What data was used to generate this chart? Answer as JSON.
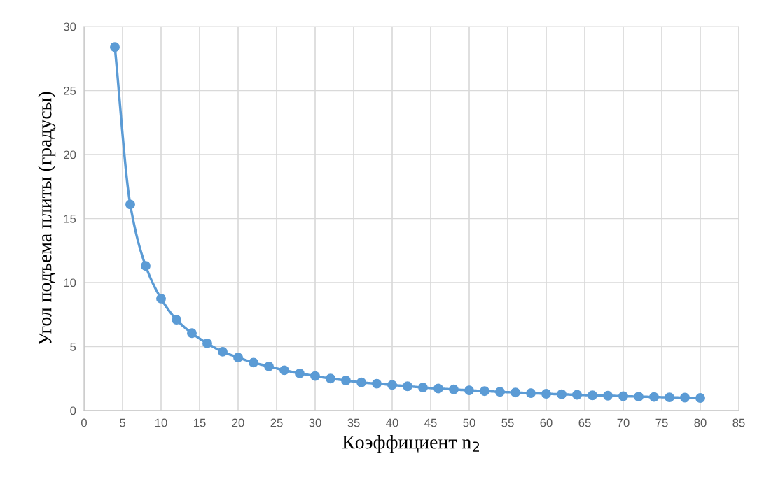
{
  "chart_data": {
    "type": "line",
    "xlabel": "Коэффициент n$_{2}$",
    "ylabel": "Угол подъема плиты (градусы)",
    "x": [
      4,
      6,
      8,
      10,
      12,
      14,
      16,
      18,
      20,
      22,
      24,
      26,
      28,
      30,
      32,
      34,
      36,
      38,
      40,
      42,
      44,
      46,
      48,
      50,
      52,
      54,
      56,
      58,
      60,
      62,
      64,
      66,
      68,
      70,
      72,
      74,
      76,
      78,
      80
    ],
    "series": [
      {
        "color": "#5b9bd5",
        "values": [
          28.4,
          16.1,
          11.3,
          8.75,
          7.1,
          6.05,
          5.25,
          4.6,
          4.15,
          3.75,
          3.45,
          3.15,
          2.9,
          2.7,
          2.5,
          2.35,
          2.2,
          2.1,
          2.0,
          1.9,
          1.8,
          1.72,
          1.65,
          1.58,
          1.52,
          1.46,
          1.41,
          1.36,
          1.31,
          1.27,
          1.23,
          1.19,
          1.16,
          1.12,
          1.09,
          1.06,
          1.03,
          1.01,
          0.98
        ]
      }
    ],
    "xlim": [
      0,
      85
    ],
    "xticks": [
      0,
      5,
      10,
      15,
      20,
      25,
      30,
      35,
      40,
      45,
      50,
      55,
      60,
      65,
      70,
      75,
      80,
      85
    ],
    "ylim": [
      0,
      30
    ],
    "yticks": [
      0,
      5,
      10,
      15,
      20,
      25,
      30
    ],
    "grid": true,
    "marker": "circle",
    "line_style": "solid"
  }
}
